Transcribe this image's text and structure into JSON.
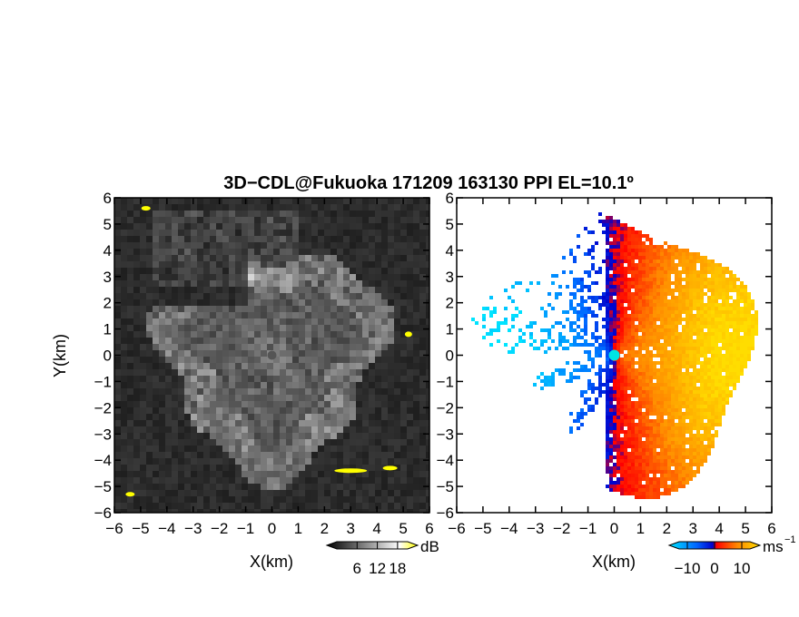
{
  "figure": {
    "title": "3D−CDL@Fukuoka 171209 163130 PPI EL=10.1º"
  },
  "chart_data": [
    {
      "type": "heatmap",
      "quantity": "reflectivity",
      "xlabel": "X(km)",
      "ylabel": "Y(km)",
      "xlim": [
        -6,
        6
      ],
      "ylim": [
        -6,
        6
      ],
      "xticks": [
        "−6",
        "−5",
        "−4",
        "−3",
        "−2",
        "−1",
        "0",
        "1",
        "2",
        "3",
        "4",
        "5",
        "6"
      ],
      "yticks": [
        "6",
        "5",
        "4",
        "3",
        "2",
        "1",
        "0",
        "−1",
        "−2",
        "−3",
        "−4",
        "−5",
        "−6"
      ],
      "colorbar": {
        "unit": "dB",
        "ticks": [
          "6",
          "12",
          "18"
        ],
        "range": [
          0,
          21
        ],
        "colors": [
          "#000000",
          "#ffffff",
          "#ffff00"
        ]
      },
      "radar_center": [
        0,
        0
      ],
      "echo_extent_km": 5
    },
    {
      "type": "heatmap",
      "quantity": "radial velocity",
      "xlabel": "X(km)",
      "xlim": [
        -6,
        6
      ],
      "ylim": [
        -6,
        6
      ],
      "xticks": [
        "−6",
        "−5",
        "−4",
        "−3",
        "−2",
        "−1",
        "0",
        "1",
        "2",
        "3",
        "4",
        "5",
        "6"
      ],
      "yticks": [
        "6",
        "5",
        "4",
        "3",
        "2",
        "1",
        "0",
        "−1",
        "−2",
        "−3",
        "−4",
        "−5",
        "−6"
      ],
      "colorbar": {
        "unit": "ms",
        "unit_exponent": "−1",
        "ticks": [
          "−10",
          "0",
          "10"
        ],
        "range": [
          -13,
          13
        ],
        "colors": [
          "#00e5ff",
          "#0066ff",
          "#0000cc",
          "#ff0000",
          "#ff8800",
          "#ffdd00"
        ]
      },
      "radar_center": [
        0,
        0
      ],
      "center_marker_color": "#00e5e5"
    }
  ]
}
